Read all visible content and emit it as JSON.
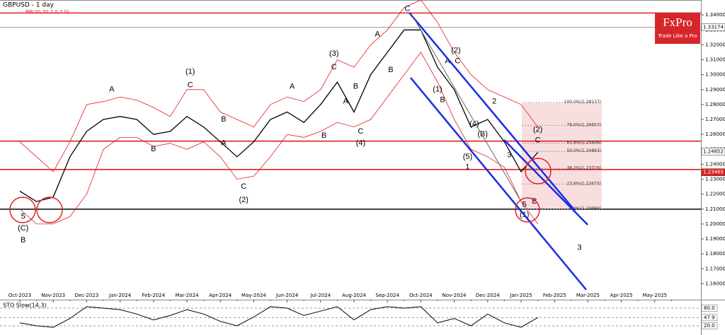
{
  "chart_data": [
    {
      "type": "line",
      "title": "GBPUSD - 1 day",
      "subtitle": "BB(20,20,2.0,2.0)",
      "categories": [
        "Oct-2023",
        null,
        "Nov-2023",
        null,
        "Dec-2023",
        null,
        "Jan-2024",
        null,
        "Feb-2024",
        null,
        "Mar-2024",
        null,
        "Apr-2024",
        null,
        "May-2024",
        null,
        "Jun-2024",
        null,
        "Jul-2024",
        null,
        "Aug-2024",
        null,
        "Sep-2024",
        null,
        "Oct-2024",
        null,
        "Nov-2024",
        null,
        "Dec-2024",
        null,
        "Jan-2025",
        null,
        "Feb-2025",
        null,
        "Mar-2025",
        null,
        "Apr-2025",
        null,
        "May-2025",
        null
      ],
      "values": [
        1.222,
        1.215,
        1.218,
        1.245,
        1.262,
        1.27,
        1.272,
        1.27,
        1.26,
        1.262,
        1.272,
        1.265,
        1.255,
        1.245,
        1.255,
        1.27,
        1.275,
        1.268,
        1.28,
        1.295,
        1.275,
        1.3,
        1.315,
        1.33,
        1.33,
        1.305,
        1.29,
        1.265,
        1.27,
        1.255,
        1.235,
        1.248,
        null,
        null,
        null,
        null,
        null,
        null,
        null,
        null
      ],
      "color": "#000000",
      "bands": {
        "color": "#e02020",
        "upper": [
          1.255,
          1.245,
          1.235,
          1.255,
          1.28,
          1.282,
          1.285,
          1.283,
          1.278,
          1.272,
          1.29,
          1.29,
          1.275,
          1.27,
          1.265,
          1.28,
          1.285,
          1.282,
          1.29,
          1.31,
          1.305,
          1.32,
          1.33,
          1.345,
          1.35,
          1.335,
          1.315,
          1.3,
          1.29,
          1.285,
          1.28,
          1.265,
          null,
          null,
          null,
          null,
          null,
          null,
          null,
          null
        ],
        "lower": [
          1.21,
          1.2,
          1.2,
          1.205,
          1.22,
          1.25,
          1.258,
          1.258,
          1.252,
          1.254,
          1.25,
          1.255,
          1.245,
          1.23,
          1.232,
          1.245,
          1.26,
          1.258,
          1.262,
          1.268,
          1.265,
          1.27,
          1.285,
          1.3,
          1.315,
          1.295,
          1.27,
          1.25,
          1.245,
          1.238,
          1.215,
          1.2,
          null,
          null,
          null,
          null,
          null,
          null,
          null,
          null
        ]
      },
      "ylim": [
        1.155,
        1.35
      ],
      "yticks": [
        {
          "value": 1.16,
          "label": "1.16000"
        },
        {
          "value": 1.17,
          "label": "1.17000"
        },
        {
          "value": 1.18,
          "label": "1.18000"
        },
        {
          "value": 1.19,
          "label": "1.19000"
        },
        {
          "value": 1.2,
          "label": "1.20000"
        },
        {
          "value": 1.21,
          "label": "1.21000"
        },
        {
          "value": 1.22,
          "label": "1.22000"
        },
        {
          "value": 1.23,
          "label": "1.23000"
        },
        {
          "value": 1.24,
          "label": "1.24000"
        },
        {
          "value": 1.25,
          "label": "1.25000"
        },
        {
          "value": 1.26,
          "label": "1.26000"
        },
        {
          "value": 1.27,
          "label": "1.27000"
        },
        {
          "value": 1.28,
          "label": "1.28000"
        },
        {
          "value": 1.29,
          "label": "1.29000"
        },
        {
          "value": 1.3,
          "label": "1.30000"
        },
        {
          "value": 1.31,
          "label": "1.31000"
        },
        {
          "value": 1.32,
          "label": "1.32000"
        },
        {
          "value": 1.33,
          "label": "1.33000"
        },
        {
          "value": 1.34,
          "label": "1.34000"
        }
      ],
      "price_markers": [
        {
          "value": 1.33174,
          "label": "1.33174",
          "color": "#ffffff",
          "text_color": "#000000"
        },
        {
          "value": 1.24852,
          "label": "1.24852",
          "color": "#ffffff",
          "text_color": "#000000"
        },
        {
          "value": 1.23465,
          "label": "1.23465",
          "color": "#e02020",
          "text_color": "#ffffff"
        }
      ],
      "levels": [
        {
          "value": 1.3413,
          "color": "#e02020"
        },
        {
          "value": 1.33174,
          "color": "#999999"
        },
        {
          "value": 1.2555,
          "color": "#e02020"
        },
        {
          "value": 1.2365,
          "color": "#e02020"
        },
        {
          "value": 1.2099,
          "color": "#000000"
        }
      ],
      "fibonacci": [
        {
          "value": 1.28137,
          "label": "100.0%(1.28137)"
        },
        {
          "value": 1.26607,
          "label": "78.6%(1.26607)"
        },
        {
          "value": 1.25406,
          "label": "61.8%(1.25406)"
        },
        {
          "value": 1.24863,
          "label": "50.0%(1.24863)"
        },
        {
          "value": 1.23719,
          "label": "38.2%(1.23719)"
        },
        {
          "value": 1.22675,
          "label": "23.6%(1.22675)"
        },
        {
          "value": 1.20989,
          "label": "0.0%(1.20989)"
        }
      ],
      "annotations": [
        {
          "text": "5",
          "x": 0.2,
          "y": 1.205
        },
        {
          "text": "(C)",
          "x": 0.2,
          "y": 1.197
        },
        {
          "text": "B",
          "x": 0.2,
          "y": 1.189
        },
        {
          "text": "A",
          "x": 5.5,
          "y": 1.29
        },
        {
          "text": "B",
          "x": 8,
          "y": 1.25
        },
        {
          "text": "(1)",
          "x": 10.2,
          "y": 1.302
        },
        {
          "text": "C",
          "x": 10.2,
          "y": 1.293
        },
        {
          "text": "B",
          "x": 12.2,
          "y": 1.27
        },
        {
          "text": "A",
          "x": 12.2,
          "y": 1.254
        },
        {
          "text": "C",
          "x": 13.4,
          "y": 1.225
        },
        {
          "text": "(2)",
          "x": 13.4,
          "y": 1.216
        },
        {
          "text": "A",
          "x": 16.3,
          "y": 1.292
        },
        {
          "text": "B",
          "x": 18.2,
          "y": 1.259
        },
        {
          "text": "(3)",
          "x": 18.8,
          "y": 1.314
        },
        {
          "text": "C",
          "x": 18.8,
          "y": 1.305
        },
        {
          "text": "A",
          "x": 19.5,
          "y": 1.282
        },
        {
          "text": "B",
          "x": 20.1,
          "y": 1.292
        },
        {
          "text": "C",
          "x": 20.4,
          "y": 1.262
        },
        {
          "text": "(4)",
          "x": 20.4,
          "y": 1.254
        },
        {
          "text": "A",
          "x": 21.4,
          "y": 1.327
        },
        {
          "text": "B",
          "x": 22.2,
          "y": 1.303
        },
        {
          "text": "C",
          "x": 23.2,
          "y": 1.344
        },
        {
          "text": "(2)",
          "x": 26.1,
          "y": 1.316
        },
        {
          "text": "A",
          "x": 25.6,
          "y": 1.309
        },
        {
          "text": "C",
          "x": 26.2,
          "y": 1.309
        },
        {
          "text": "(1)",
          "x": 25,
          "y": 1.29
        },
        {
          "text": "B",
          "x": 25.3,
          "y": 1.283
        },
        {
          "text": "(4)",
          "x": 27.2,
          "y": 1.267
        },
        {
          "text": "(B)",
          "x": 27.7,
          "y": 1.26
        },
        {
          "text": "(5)",
          "x": 26.8,
          "y": 1.245
        },
        {
          "text": "1",
          "x": 26.8,
          "y": 1.238
        },
        {
          "text": "2",
          "x": 28.4,
          "y": 1.282
        },
        {
          "text": "3",
          "x": 29.3,
          "y": 1.246
        },
        {
          "text": "5",
          "x": 30.2,
          "y": 1.213
        },
        {
          "text": "(1)",
          "x": 30.2,
          "y": 1.206
        },
        {
          "text": "B",
          "x": 30.8,
          "y": 1.215
        },
        {
          "text": "(2)",
          "x": 31,
          "y": 1.263
        },
        {
          "text": "C",
          "x": 31,
          "y": 1.256
        },
        {
          "text": "3",
          "x": 33.5,
          "y": 1.184
        }
      ],
      "brand": {
        "name": "FxPro",
        "tagline": "Trade Like a Pro"
      }
    },
    {
      "type": "line",
      "title": "STO Slow(14,3)",
      "values": [
        30,
        20,
        15,
        45,
        85,
        80,
        75,
        60,
        40,
        55,
        75,
        60,
        35,
        20,
        50,
        85,
        80,
        55,
        70,
        85,
        40,
        75,
        85,
        80,
        85,
        30,
        45,
        20,
        60,
        30,
        15,
        48,
        null,
        null,
        null,
        null,
        null,
        null,
        null,
        null
      ],
      "color": "#000000",
      "ylim": [
        0,
        100
      ],
      "yticks": [
        {
          "value": 80,
          "label": "80.0"
        },
        {
          "value": 47.9,
          "label": "47.9"
        },
        {
          "value": 20,
          "label": "20.0"
        }
      ]
    }
  ]
}
